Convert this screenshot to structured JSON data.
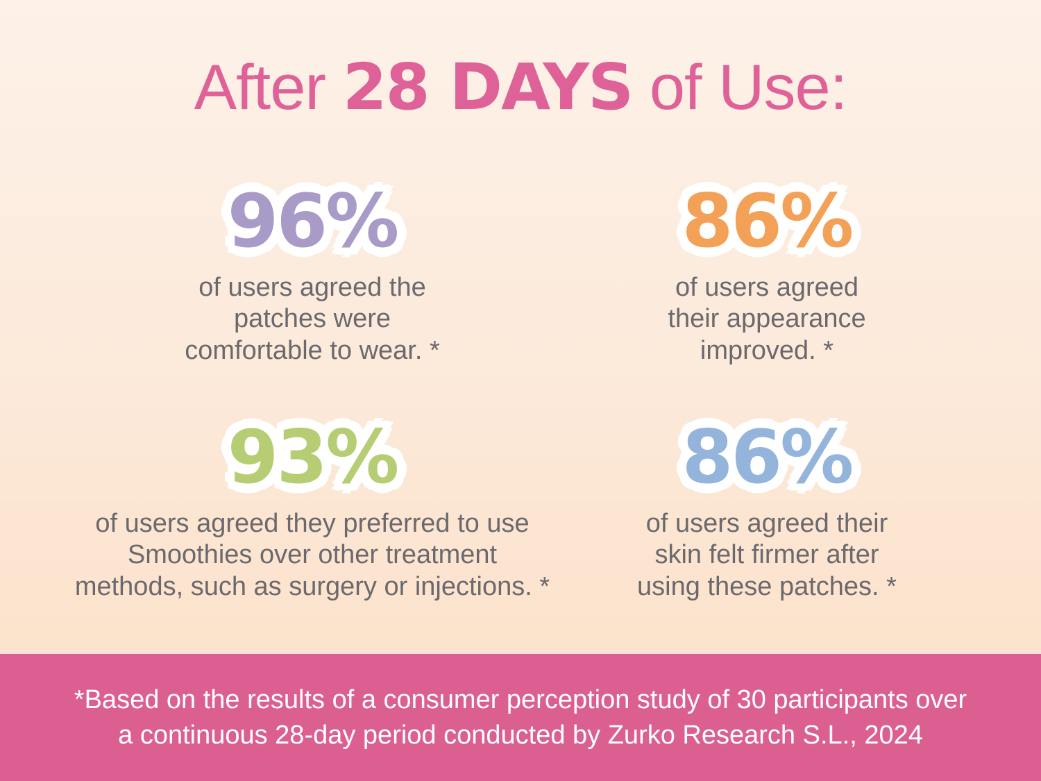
{
  "title": {
    "prefix": "After ",
    "highlight": "28 DAYS",
    "suffix": " of Use:"
  },
  "stats": [
    {
      "value": "96%",
      "color": "#a99bc7",
      "text": "of users agreed the\npatches were\ncomfortable to wear. *"
    },
    {
      "value": "86%",
      "color": "#f4a158",
      "text": "of users agreed\ntheir appearance\nimproved. *"
    },
    {
      "value": "93%",
      "color": "#b7cd74",
      "text": "of users agreed they preferred to use\nSmoothies over other treatment\nmethods, such as surgery or injections. *"
    },
    {
      "value": "86%",
      "color": "#94b4dc",
      "text": "of users agreed their\nskin felt firmer after\nusing these patches. *"
    }
  ],
  "footnote": "*Based on the results of a consumer perception study of 30 participants over\na continuous 28-day period conducted by Zurko Research S.L., 2024",
  "colors": {
    "title_pink": "#de6298",
    "band_pink": "#dc5f92",
    "body_gray": "#6b696d",
    "background_top": "#fdf1e8",
    "background_bottom": "#fbdfc5"
  }
}
